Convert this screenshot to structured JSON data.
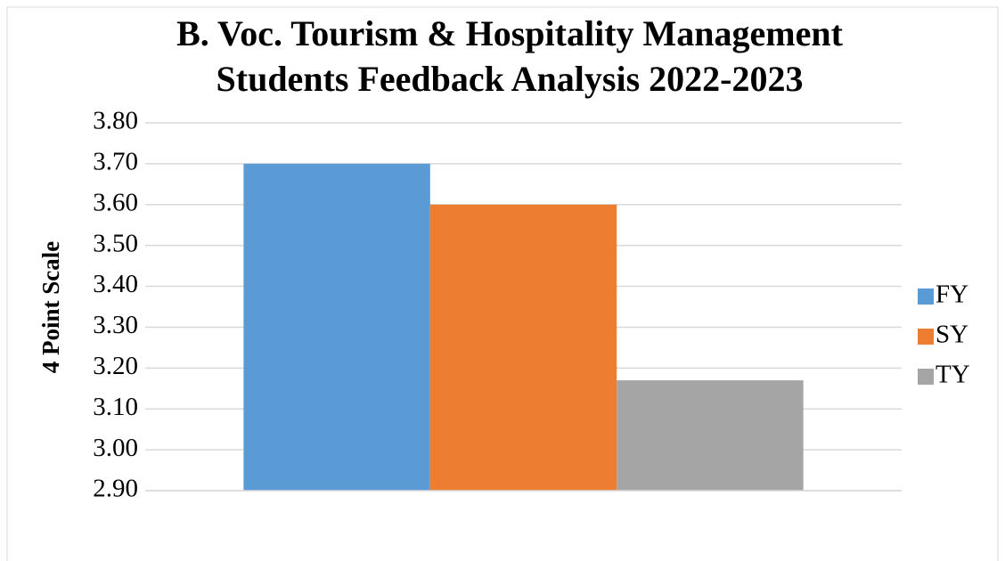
{
  "chart_data": {
    "type": "bar",
    "title": [
      "B. Voc. Tourism & Hospitality Management",
      "Students Feedback Analysis 2022-2023"
    ],
    "y_label": "4 Point Scale",
    "categories": [
      null
    ],
    "series": [
      {
        "name": "FY",
        "color": "#5b9bd5",
        "values": [
          3.7
        ]
      },
      {
        "name": "SY",
        "color": "#ed7d31",
        "values": [
          3.6
        ]
      },
      {
        "name": "TY",
        "color": "#a5a5a5",
        "values": [
          3.17
        ]
      }
    ],
    "ylim": [
      2.9,
      3.8
    ],
    "yticks": [
      {
        "value": 2.9,
        "label": "2.90"
      },
      {
        "value": 3.0,
        "label": "3.00"
      },
      {
        "value": 3.1,
        "label": "3.10"
      },
      {
        "value": 3.2,
        "label": "3.20"
      },
      {
        "value": 3.3,
        "label": "3.30"
      },
      {
        "value": 3.4,
        "label": "3.40"
      },
      {
        "value": 3.5,
        "label": "3.50"
      },
      {
        "value": 3.6,
        "label": "3.60"
      },
      {
        "value": 3.7,
        "label": "3.70"
      },
      {
        "value": 3.8,
        "label": "3.80"
      }
    ],
    "grid": true,
    "legend": "right"
  }
}
